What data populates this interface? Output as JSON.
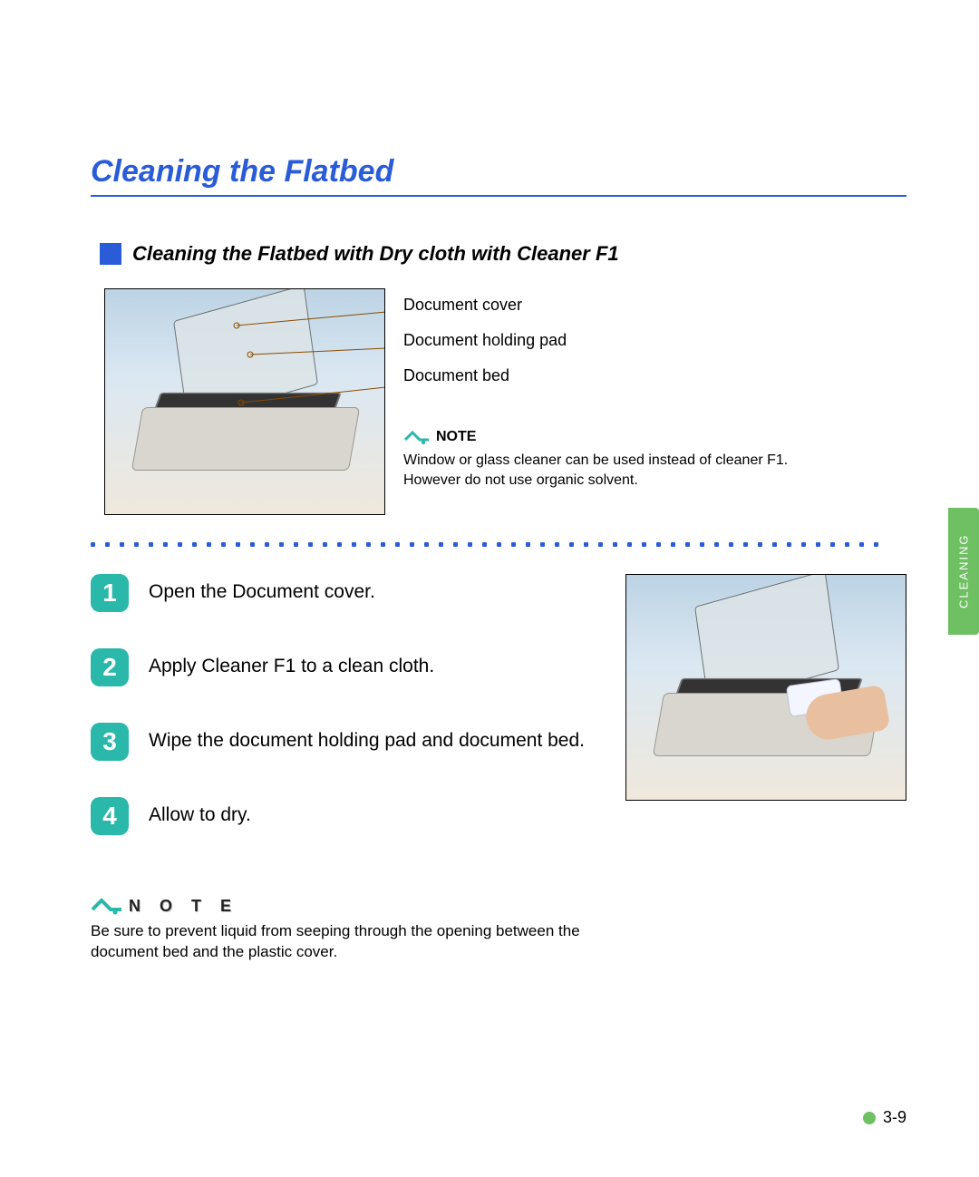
{
  "colors": {
    "title_blue": "#2a5cd8",
    "accent_teal": "#2ab8aa",
    "tab_green": "#6fbf63",
    "note_icon_green": "#2ab8aa",
    "page_bg": "#ffffff",
    "text": "#000000",
    "diagram_bg_top": "#bcd3e4",
    "diagram_bg_bottom": "#efe8dc"
  },
  "fonts": {
    "title_size_pt": 26,
    "subheading_size_pt": 17,
    "body_size_pt": 16,
    "step_size_pt": 16,
    "note_small_size_pt": 12
  },
  "title": "Cleaning the Flatbed",
  "subheading": "Cleaning the Flatbed with Dry cloth with Cleaner F1",
  "diagram": {
    "labels": {
      "cover": "Document cover",
      "pad": "Document holding pad",
      "bed": "Document bed"
    },
    "callout_color": "#8a4b00"
  },
  "note1": {
    "label": "NOTE",
    "line1": "Window or glass cleaner can be used instead of cleaner F1.",
    "line2": "However do not use organic solvent."
  },
  "steps": [
    {
      "n": "1",
      "text": "Open the Document cover."
    },
    {
      "n": "2",
      "text": "Apply  Cleaner F1 to a clean cloth."
    },
    {
      "n": "3",
      "text": "Wipe the document holding pad and document bed."
    },
    {
      "n": "4",
      "text": "Allow to dry."
    }
  ],
  "note2": {
    "label": "N O T E",
    "text": "Be sure to prevent liquid from seeping through the opening between the document bed and the plastic cover."
  },
  "side_tab": "CLEANING",
  "page_number": "3-9",
  "dot_separator": {
    "count": 55,
    "color": "#2a5cd8"
  }
}
